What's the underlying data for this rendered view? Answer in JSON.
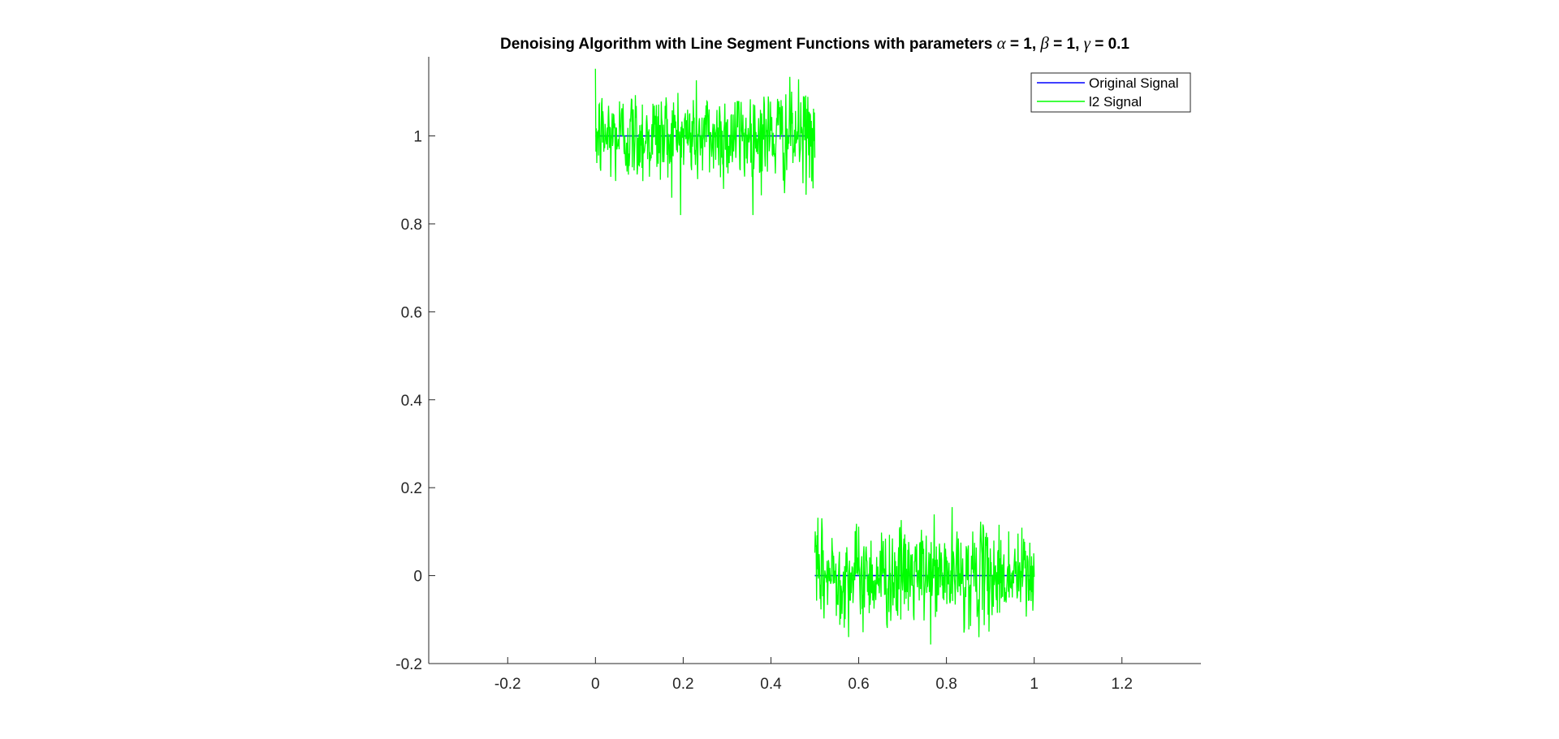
{
  "chart_data": {
    "type": "line",
    "title_parts": [
      {
        "text": "Denoising Algorithm with Line Segment Functions with parameters ",
        "math": false
      },
      {
        "text": "α",
        "math": true
      },
      {
        "text": " = 1, ",
        "math": false
      },
      {
        "text": "β",
        "math": true
      },
      {
        "text": " = 1, ",
        "math": false
      },
      {
        "text": "γ",
        "math": true
      },
      {
        "text": " = 0.1",
        "math": false
      }
    ],
    "xlim": [
      -0.38,
      1.38
    ],
    "ylim": [
      -0.2,
      1.18
    ],
    "xticks": [
      -0.2,
      0,
      0.2,
      0.4,
      0.6,
      0.8,
      1,
      1.2
    ],
    "xtick_labels": [
      "-0.2",
      "0",
      "0.2",
      "0.4",
      "0.6",
      "0.8",
      "1",
      "1.2"
    ],
    "yticks": [
      -0.2,
      0,
      0.2,
      0.4,
      0.6,
      0.8,
      1
    ],
    "ytick_labels": [
      "-0.2",
      "0",
      "0.2",
      "0.4",
      "0.6",
      "0.8",
      "1"
    ],
    "grid": false,
    "legend_position": "top-right",
    "series": [
      {
        "name": "Original Signal",
        "color": "#0000ff",
        "segments": [
          {
            "x": [
              0,
              0.5
            ],
            "y": [
              1,
              1
            ]
          },
          {
            "x": [
              0.5,
              1
            ],
            "y": [
              0,
              0
            ]
          }
        ]
      },
      {
        "name": "l2 Signal",
        "color": "#00ff00",
        "noise": {
          "description_free": true,
          "segments": [
            {
              "x_range": [
                0,
                0.5
              ],
              "center": 1,
              "y_range": [
                0.82,
                1.18
              ]
            },
            {
              "x_range": [
                0.5,
                1
              ],
              "center": 0,
              "y_range": [
                -0.2,
                0.215
              ]
            }
          ]
        }
      }
    ]
  }
}
